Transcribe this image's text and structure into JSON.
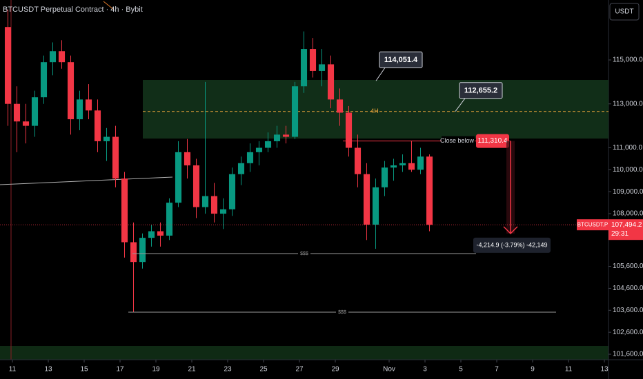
{
  "chart_data": {
    "type": "candlestick",
    "title": "BTCUSDT Perpetual Contract · 4h · Bybit",
    "currency": "USDT",
    "series": [
      {
        "name": "BTCUSDT.P",
        "up_color": "#089981",
        "down_color": "#f23645",
        "open": [
          116500,
          113000,
          112200,
          112000,
          113300,
          114900,
          115400,
          114900,
          112300,
          113200,
          112700,
          111300,
          111500,
          109600,
          106700,
          105800,
          106900,
          107200,
          107000,
          108500,
          110800,
          110200,
          108300,
          108800,
          108000,
          108200,
          109800,
          110300,
          110800,
          111000,
          111300,
          111600,
          111500,
          113800,
          115500,
          114500,
          114800,
          113200,
          112600,
          111000,
          109800,
          107500,
          109200,
          110100,
          110200,
          110300,
          110000,
          110600
        ],
        "high": [
          117300,
          113800,
          113000,
          113600,
          115200,
          115800,
          115900,
          115200,
          113600,
          113900,
          113200,
          111900,
          112000,
          109900,
          107600,
          107100,
          107500,
          107600,
          108700,
          111300,
          111400,
          110500,
          114000,
          109400,
          108700,
          110100,
          110600,
          111200,
          111300,
          111700,
          112000,
          112000,
          114000,
          116300,
          116000,
          115500,
          115200,
          113700,
          112900,
          111600,
          110300,
          109600,
          110400,
          110500,
          110700,
          111300,
          111000,
          110700
        ],
        "low": [
          112000,
          110800,
          111200,
          111500,
          113000,
          114300,
          114600,
          111600,
          111800,
          112300,
          110800,
          110400,
          109200,
          106000,
          103500,
          105500,
          106500,
          106500,
          106800,
          108300,
          109600,
          107800,
          108000,
          107600,
          107300,
          107900,
          109300,
          109900,
          110200,
          110800,
          111000,
          111200,
          111400,
          113500,
          114200,
          113800,
          112800,
          112000,
          110600,
          109200,
          106800,
          106400,
          108800,
          109500,
          109900,
          109900,
          109800,
          107200
        ],
        "close": [
          113000,
          112200,
          112000,
          113300,
          114900,
          115400,
          114900,
          112300,
          113200,
          112700,
          111300,
          111500,
          109600,
          106700,
          105800,
          106900,
          107200,
          107000,
          108500,
          110800,
          110200,
          108300,
          108800,
          108000,
          108200,
          109800,
          110300,
          110800,
          111000,
          111300,
          111600,
          111500,
          113800,
          115500,
          114500,
          114800,
          113200,
          112600,
          111000,
          109800,
          107500,
          109200,
          110100,
          110200,
          110300,
          110000,
          110600,
          107494.2
        ]
      }
    ],
    "ylim": [
      101350,
      117730
    ],
    "yticks": [
      {
        "value": 115000,
        "label": "115,000.0"
      },
      {
        "value": 113000,
        "label": "113,000.0"
      },
      {
        "value": 111000,
        "label": "111,000.0"
      },
      {
        "value": 110000,
        "label": "110,000.0"
      },
      {
        "value": 109000,
        "label": "109,000.0"
      },
      {
        "value": 108000,
        "label": "108,000.0"
      },
      {
        "value": 105600,
        "label": "105,600.0"
      },
      {
        "value": 104600,
        "label": "104,600.0"
      },
      {
        "value": 103600,
        "label": "103,600.0"
      },
      {
        "value": 102600,
        "label": "102,600.0"
      },
      {
        "value": 101600,
        "label": "101,600.0"
      }
    ],
    "xlim": [
      -0.885,
      66.96
    ],
    "xticks": [
      {
        "value": 0.5,
        "label": "11"
      },
      {
        "value": 4.5,
        "label": "13"
      },
      {
        "value": 8.5,
        "label": "15"
      },
      {
        "value": 12.5,
        "label": "17"
      },
      {
        "value": 16.5,
        "label": "19"
      },
      {
        "value": 20.5,
        "label": "21"
      },
      {
        "value": 24.5,
        "label": "23"
      },
      {
        "value": 28.5,
        "label": "25"
      },
      {
        "value": 32.5,
        "label": "27"
      },
      {
        "value": 36.5,
        "label": "29"
      },
      {
        "value": 42.5,
        "label": "Nov"
      },
      {
        "value": 46.5,
        "label": "3"
      },
      {
        "value": 50.5,
        "label": "5"
      },
      {
        "value": 54.5,
        "label": "7"
      },
      {
        "value": 58.5,
        "label": "9"
      },
      {
        "value": 62.5,
        "label": "11"
      },
      {
        "value": 66.5,
        "label": "13"
      }
    ],
    "last_price": {
      "value": 107494.2,
      "label": "107,494.2",
      "countdown": "29:31"
    },
    "zone": {
      "low": 111420,
      "high": 114090
    },
    "callouts": [
      {
        "value": 114051.4,
        "label": "114,051.4"
      },
      {
        "value": 112655.2,
        "label": "112,655.2"
      }
    ],
    "level_4h": {
      "value": 112655.2,
      "label": "4H"
    },
    "close_below": {
      "text": "Close below",
      "value": 111310.4,
      "label": "111,310.4"
    },
    "measure": {
      "label": "-4,214.9 (-3.79%) -42,149",
      "from": 111310.4,
      "change": -4214.9
    },
    "liquidity": [
      {
        "value": 106183,
        "label": "$$$"
      },
      {
        "value": 103516,
        "label": "$$$"
      }
    ]
  }
}
